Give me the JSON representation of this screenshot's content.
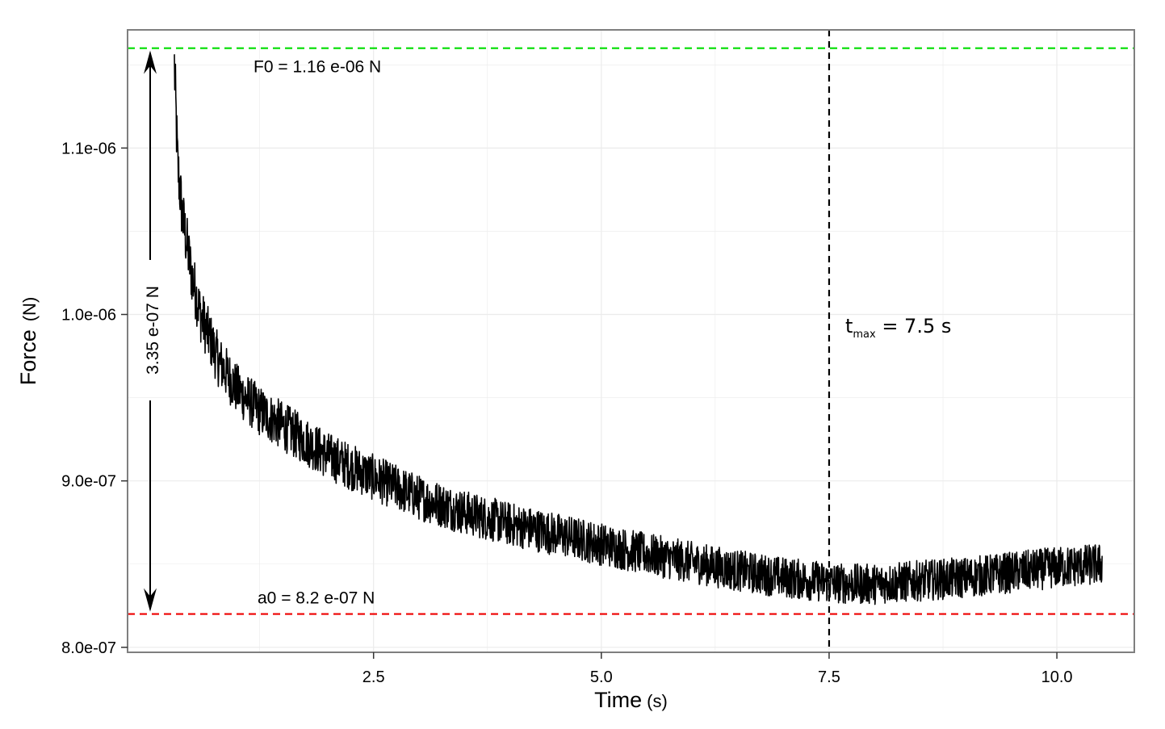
{
  "chart_data": {
    "type": "line",
    "title": "",
    "xlabel": "Time",
    "xlabel_unit": "(s)",
    "ylabel": "Force",
    "ylabel_unit": "(N)",
    "xlim": [
      -0.2,
      10.85
    ],
    "ylim": [
      7.97e-07,
      1.171e-06
    ],
    "x_ticks": [
      2.5,
      5.0,
      7.5,
      10.0
    ],
    "x_tick_labels": [
      "2.5",
      "5.0",
      "7.5",
      "10.0"
    ],
    "y_ticks": [
      8e-07,
      9e-07,
      1e-06,
      1.1e-06
    ],
    "y_tick_labels": [
      "8.0e-07",
      "9.0e-07",
      "1.0e-06",
      "1.1e-06"
    ],
    "grid": true,
    "legend": "none",
    "series": [
      {
        "x": [
          0.31,
          0.35,
          0.4,
          0.5,
          0.6,
          0.8,
          1.0,
          1.25,
          1.5,
          1.75,
          2.0,
          2.5,
          3.0,
          3.5,
          4.0,
          4.5,
          5.0,
          5.5,
          6.0,
          6.5,
          7.0,
          7.5,
          7.75,
          8.0,
          8.5,
          9.0,
          9.5,
          10.0,
          10.5
        ],
        "y": [
          1.156e-06,
          1.09e-06,
          1.06e-06,
          1.025e-06,
          1e-06,
          9.72e-07,
          9.55e-07,
          9.42e-07,
          9.33e-07,
          9.24e-07,
          9.15e-07,
          9.02e-07,
          8.9e-07,
          8.81e-07,
          8.74e-07,
          8.68e-07,
          8.62e-07,
          8.56e-07,
          8.51e-07,
          8.46e-07,
          8.42e-07,
          8.39e-07,
          8.38e-07,
          8.38e-07,
          8.4e-07,
          8.42e-07,
          8.45e-07,
          8.48e-07,
          8.5e-07
        ]
      }
    ],
    "reference_lines": [
      {
        "axis": "y",
        "value": 1.16e-06,
        "color": "#00dd00",
        "style": "dashed"
      },
      {
        "axis": "y",
        "value": 8.2e-07,
        "color": "#ee0000",
        "style": "dashed"
      },
      {
        "axis": "x",
        "value": 7.5,
        "color": "#000000",
        "style": "dashed"
      }
    ],
    "annotations": {
      "f0": "F0 = 1.16 e-06 N",
      "a0": "a0 = 8.2 e-07 N",
      "delta": "3.35 e-07 N",
      "tmax_base": "t",
      "tmax_sub": "max",
      "tmax_value": " = 7.5 s"
    },
    "colors": {
      "line": "#000000",
      "panel_border": "#7f7f7f",
      "grid": "#ebebeb"
    }
  }
}
